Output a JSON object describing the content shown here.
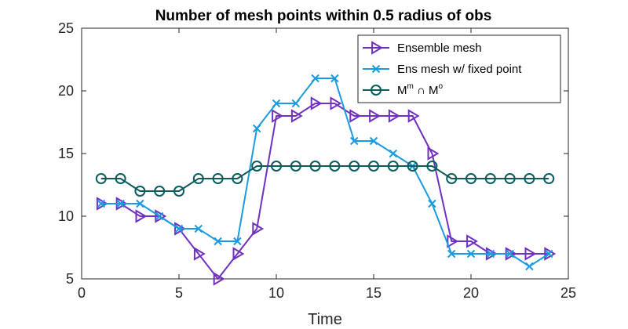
{
  "chart_data": {
    "type": "line",
    "title": "Number of mesh points within 0.5 radius of obs",
    "xlabel": "Time",
    "ylabel": "",
    "xlim": [
      0,
      25
    ],
    "ylim": [
      5,
      25
    ],
    "xticks": [
      0,
      5,
      10,
      15,
      20,
      25
    ],
    "yticks": [
      5,
      10,
      15,
      20,
      25
    ],
    "grid": false,
    "legend_position": "top-right",
    "x": [
      1,
      2,
      3,
      4,
      5,
      6,
      7,
      8,
      9,
      10,
      11,
      12,
      13,
      14,
      15,
      16,
      17,
      18,
      19,
      20,
      21,
      22,
      23,
      24
    ],
    "series": [
      {
        "name": "Ensemble mesh",
        "color": "#7030c0",
        "marker": "triangle-right",
        "values": [
          11,
          11,
          10,
          10,
          9,
          7,
          5,
          7,
          9,
          18,
          18,
          19,
          19,
          18,
          18,
          18,
          18,
          15,
          8,
          8,
          7,
          7,
          7,
          7
        ]
      },
      {
        "name": "Ens mesh w/ fixed point",
        "color": "#1a9be0",
        "marker": "x",
        "values": [
          11,
          11,
          11,
          10,
          9,
          9,
          8,
          8,
          17,
          19,
          19,
          21,
          21,
          16,
          16,
          15,
          14,
          11,
          7,
          7,
          7,
          7,
          6,
          7
        ]
      },
      {
        "name": "M^m ∩ M^o",
        "name_parts": {
          "base1": "M",
          "sup1": "m",
          "op": " ∩ ",
          "base2": "M",
          "sup2": "o"
        },
        "color": "#0d5c5c",
        "marker": "circle",
        "values": [
          13,
          13,
          12,
          12,
          12,
          13,
          13,
          13,
          14,
          14,
          14,
          14,
          14,
          14,
          14,
          14,
          14,
          14,
          13,
          13,
          13,
          13,
          13,
          13
        ]
      }
    ]
  }
}
